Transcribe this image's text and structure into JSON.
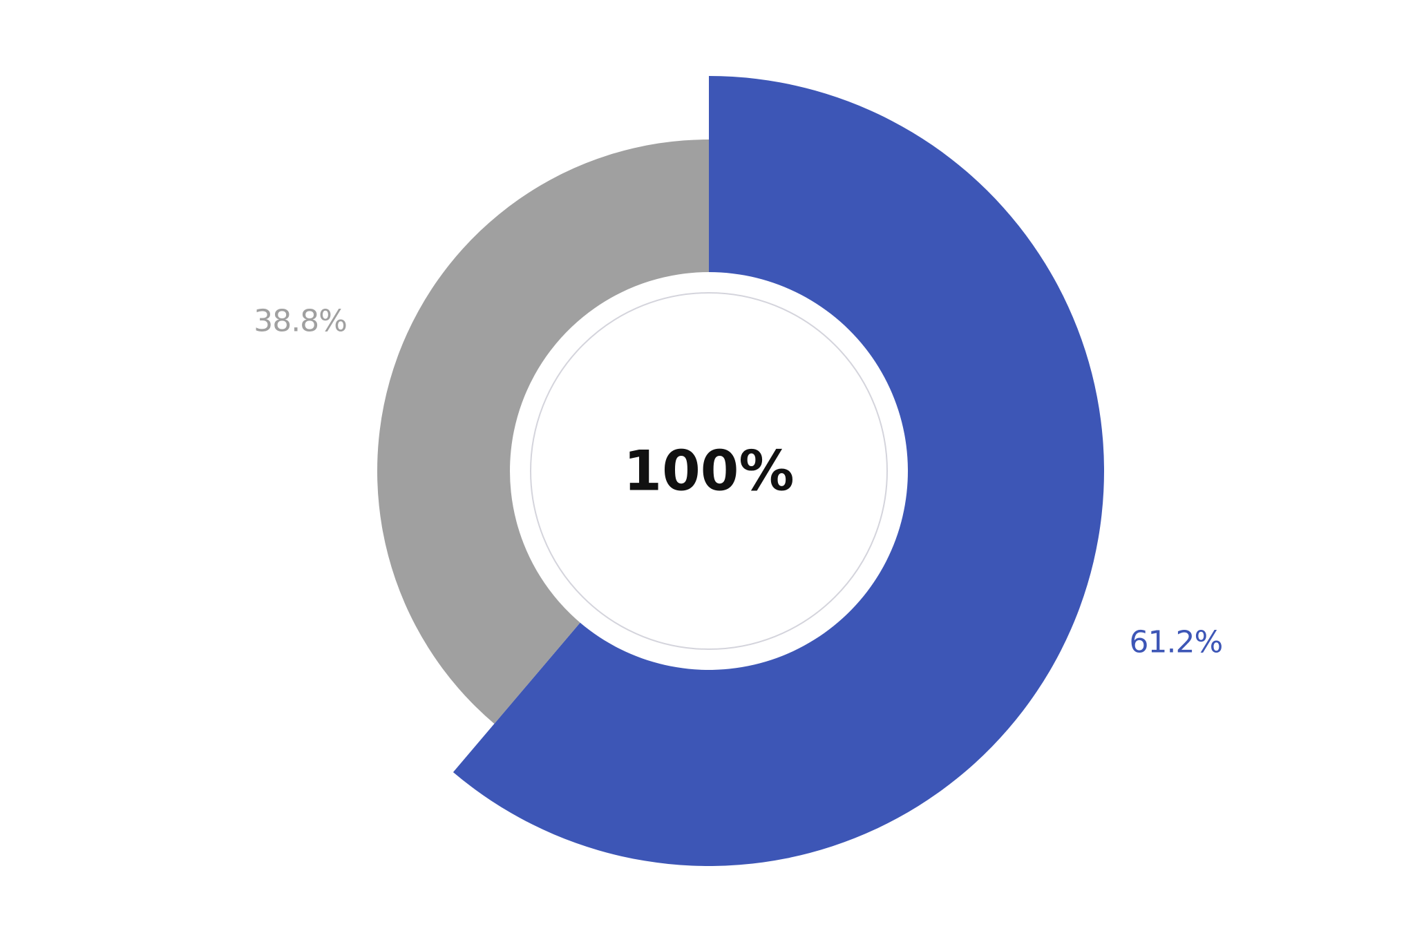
{
  "chart_data": {
    "type": "pie",
    "variant": "donut",
    "center_text": "100%",
    "slices": [
      {
        "value": 61.2,
        "label": "61.2%",
        "color": "#3d56b6"
      },
      {
        "value": 38.8,
        "label": "38.8%",
        "color": "#a0a0a0"
      }
    ],
    "legend": "none"
  }
}
